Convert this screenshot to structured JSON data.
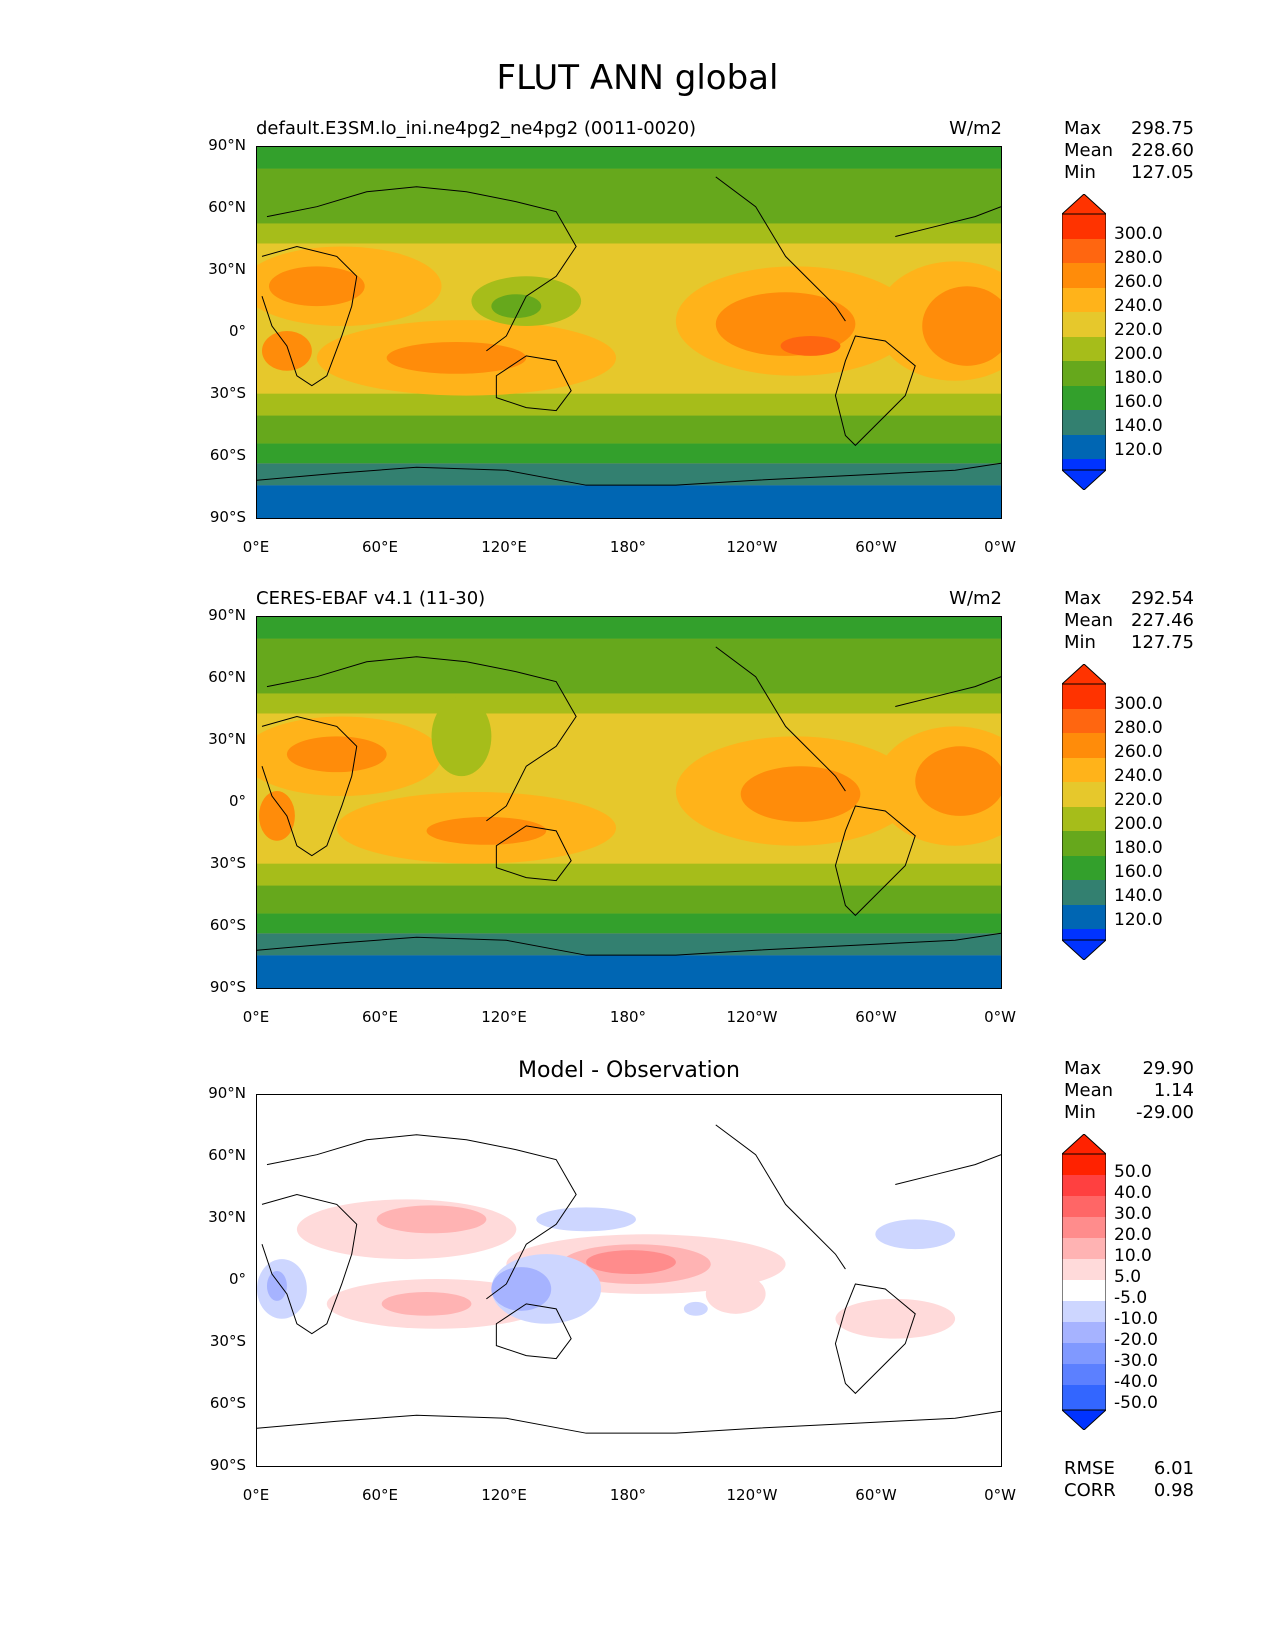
{
  "figure": {
    "title": "FLUT ANN global"
  },
  "axes": {
    "lat_labels": [
      "90°N",
      "60°N",
      "30°N",
      "0°",
      "30°S",
      "60°S",
      "90°S"
    ],
    "lon_labels": [
      "0°E",
      "60°E",
      "120°E",
      "180°",
      "120°W",
      "60°W",
      "0°W"
    ]
  },
  "panels": [
    {
      "title_left": "default.E3SM.lo_ini.ne4pg2_ne4pg2 (0011-0020)",
      "units": "W/m2",
      "stats": {
        "max_label": "Max",
        "max": "298.75",
        "mean_label": "Mean",
        "mean": "228.60",
        "min_label": "Min",
        "min": "127.05"
      },
      "colorbar": {
        "labels": [
          "300.0",
          "280.0",
          "260.0",
          "240.0",
          "220.0",
          "200.0",
          "180.0",
          "160.0",
          "140.0",
          "120.0"
        ]
      }
    },
    {
      "title_left": "CERES-EBAF v4.1 (11-30)",
      "units": "W/m2",
      "stats": {
        "max_label": "Max",
        "max": "292.54",
        "mean_label": "Mean",
        "mean": "227.46",
        "min_label": "Min",
        "min": "127.75"
      },
      "colorbar": {
        "labels": [
          "300.0",
          "280.0",
          "260.0",
          "240.0",
          "220.0",
          "200.0",
          "180.0",
          "160.0",
          "140.0",
          "120.0"
        ]
      }
    },
    {
      "title_center": "Model - Observation",
      "stats": {
        "max_label": "Max",
        "max": "29.90",
        "mean_label": "Mean",
        "mean": "1.14",
        "min_label": "Min",
        "min": "-29.00"
      },
      "colorbar": {
        "labels": [
          "50.0",
          "40.0",
          "30.0",
          "20.0",
          "10.0",
          "5.0",
          "-5.0",
          "-10.0",
          "-20.0",
          "-30.0",
          "-40.0",
          "-50.0"
        ]
      },
      "metrics": {
        "rmse_label": "RMSE",
        "rmse": "6.01",
        "corr_label": "CORR",
        "corr": "0.98"
      }
    }
  ],
  "colors": {
    "flux_scale": [
      "#0033ff",
      "#0066b3",
      "#338070",
      "#33a02c",
      "#66a81c",
      "#a6bd1a",
      "#e6c82c",
      "#ffb31a",
      "#ff8c0a",
      "#ff6610",
      "#ff3300"
    ],
    "diff_scale": [
      "#0033ff",
      "#3366ff",
      "#5c80ff",
      "#8099ff",
      "#a6b3ff",
      "#cdd6ff",
      "#ffffff",
      "#ffdada",
      "#ffb3b3",
      "#ff8c8c",
      "#ff6666",
      "#ff4040",
      "#ff2200"
    ]
  }
}
